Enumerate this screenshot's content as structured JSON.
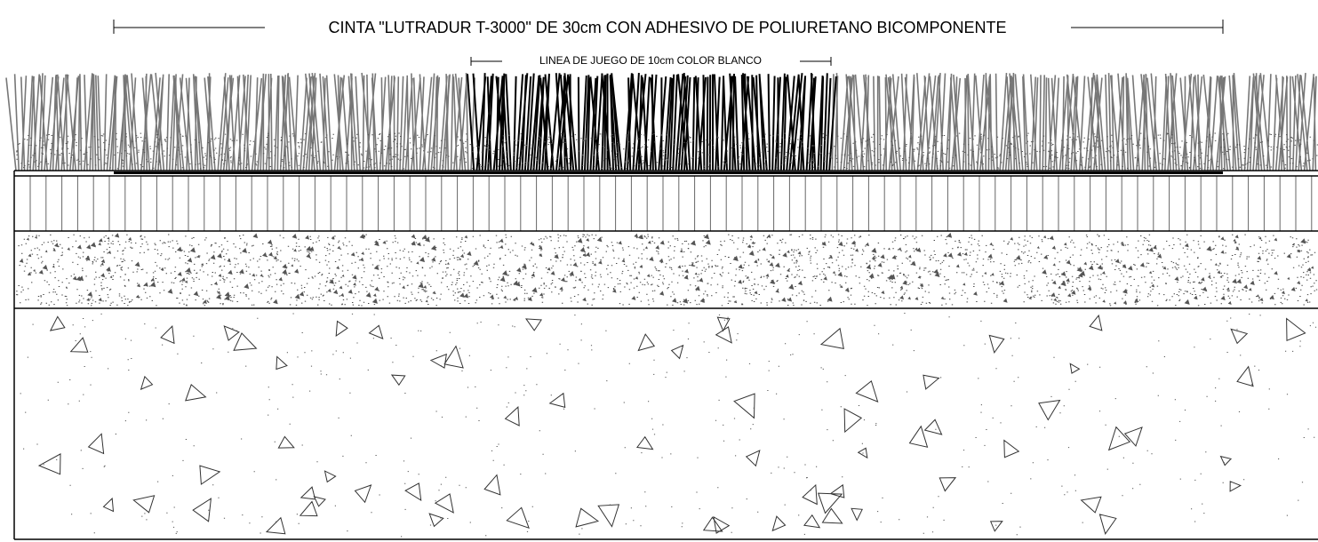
{
  "labels": {
    "tape": "CINTA \"LUTRADUR T-3000\" DE 30cm CON ADHESIVO DE POLIURETANO BICOMPONENTE",
    "line": "LINEA DE JUEGO DE 10cm COLOR BLANCO"
  }
}
